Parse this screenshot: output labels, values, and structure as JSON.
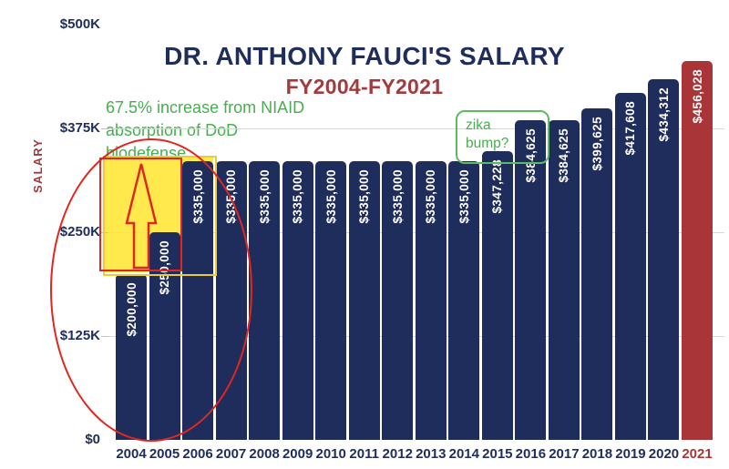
{
  "title": "DR. ANTHONY FAUCI'S SALARY",
  "subtitle": "FY2004-FY2021",
  "y_axis_label": "SALARY",
  "annotations": {
    "increase_note": {
      "line1": "67.5% increase from NIAID",
      "line2": "absorption of DoD",
      "line3": "biodefense"
    },
    "zika_note": {
      "line1": "zika",
      "line2": "bump?"
    }
  },
  "colors": {
    "navy": "#1f2d5c",
    "bar_red": "#a93538",
    "brick_red": "#a43a3c",
    "annotation_red": "#e0261f",
    "yellow_fill": "#ffe94d",
    "yellow_border": "#eecb30",
    "green_text": "#4aad51",
    "green_box": "#5cbb62",
    "gridline": "#d8d8d8",
    "bar_label_text": "#ffffff"
  },
  "chart_data": {
    "type": "bar",
    "title": "DR. ANTHONY FAUCI'S SALARY",
    "subtitle": "FY2004-FY2021",
    "ylabel": "SALARY",
    "xlabel": "",
    "ylim": [
      0,
      500000
    ],
    "grid": "horizontal",
    "legend": "none",
    "yticks": [
      {
        "label": "$0",
        "value": 0
      },
      {
        "label": "$125K",
        "value": 125000
      },
      {
        "label": "$250K",
        "value": 250000
      },
      {
        "label": "$375K",
        "value": 375000
      },
      {
        "label": "$500K",
        "value": 500000
      }
    ],
    "categories": [
      "2004",
      "2005",
      "2006",
      "2007",
      "2008",
      "2009",
      "2010",
      "2011",
      "2012",
      "2013",
      "2014",
      "2015",
      "2016",
      "2017",
      "2018",
      "2019",
      "2020",
      "2021"
    ],
    "values": [
      200000,
      250000,
      335000,
      335000,
      335000,
      335000,
      335000,
      335000,
      335000,
      335000,
      335000,
      347228,
      384625,
      384625,
      399625,
      417608,
      434312,
      456028
    ],
    "bar_labels": [
      "$200,000",
      "$250,000",
      "$335,000",
      "$335,000",
      "$335,000",
      "$335,000",
      "$335,000",
      "$335,000",
      "$335,000",
      "$335,000",
      "$335,000",
      "$347,228",
      "$384,625",
      "$384,625",
      "$399,625",
      "$417,608",
      "$434,312",
      "$456,028"
    ],
    "highlight_category": "2021",
    "annotations": [
      {
        "text": "67.5% increase from NIAID absorption of DoD biodefense",
        "target": "2004-2006 bars",
        "marks": "yellow highlight box, red rectangle, red up arrow, red ellipse"
      },
      {
        "text": "zika bump?",
        "target": "2015-2016 bars",
        "marks": "green rounded box"
      }
    ]
  }
}
